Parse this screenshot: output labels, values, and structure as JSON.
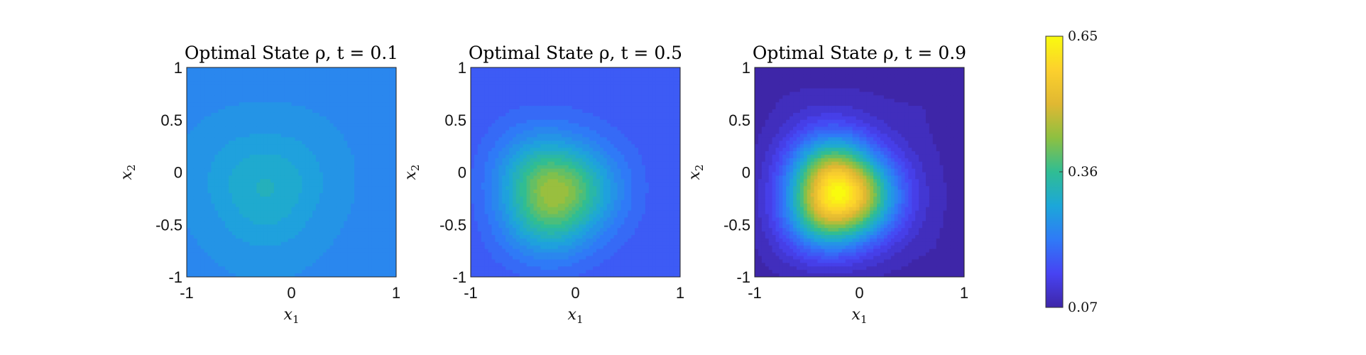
{
  "chart_data": [
    {
      "type": "heatmap",
      "title": "Optimal State ρ, t = 0.1",
      "xlabel": "x1",
      "ylabel": "x2",
      "xlim": [
        -1,
        1
      ],
      "ylim": [
        -1,
        1
      ],
      "xticks": [
        "-1",
        "0",
        "1"
      ],
      "yticks": [
        "1",
        "0.5",
        "0",
        "-0.5",
        "-1"
      ],
      "peak": {
        "x": -0.25,
        "y": -0.15,
        "value": 0.31
      },
      "base_value": 0.24,
      "spread": 0.55
    },
    {
      "type": "heatmap",
      "title": "Optimal State ρ, t = 0.5",
      "xlabel": "x1",
      "ylabel": "x2",
      "xlim": [
        -1,
        1
      ],
      "ylim": [
        -1,
        1
      ],
      "xticks": [
        "-1",
        "0",
        "1"
      ],
      "yticks": [
        "1",
        "0.5",
        "0",
        "-0.5",
        "-1"
      ],
      "peak": {
        "x": -0.2,
        "y": -0.2,
        "value": 0.45
      },
      "base_value": 0.17,
      "spread": 0.5
    },
    {
      "type": "heatmap",
      "title": "Optimal State ρ, t = 0.9",
      "xlabel": "x1",
      "ylabel": "x2",
      "xlim": [
        -1,
        1
      ],
      "ylim": [
        -1,
        1
      ],
      "xticks": [
        "-1",
        "0",
        "1"
      ],
      "yticks": [
        "1",
        "0.5",
        "0",
        "-0.5",
        "-1"
      ],
      "peak": {
        "x": -0.2,
        "y": -0.2,
        "value": 0.65
      },
      "base_value": 0.08,
      "spread": 0.46
    }
  ],
  "colorbar": {
    "colormap": "parula",
    "min": 0.07,
    "max": 0.65,
    "tick_labels": [
      "0.65",
      "0.36",
      "0.07"
    ],
    "tick_values": [
      0.65,
      0.36,
      0.07
    ],
    "colors": [
      "#3e26a8",
      "#4743f3",
      "#2f7af7",
      "#1ca7d9",
      "#30bd93",
      "#8dc041",
      "#e0b832",
      "#fcd02d",
      "#f9fb0e"
    ]
  }
}
